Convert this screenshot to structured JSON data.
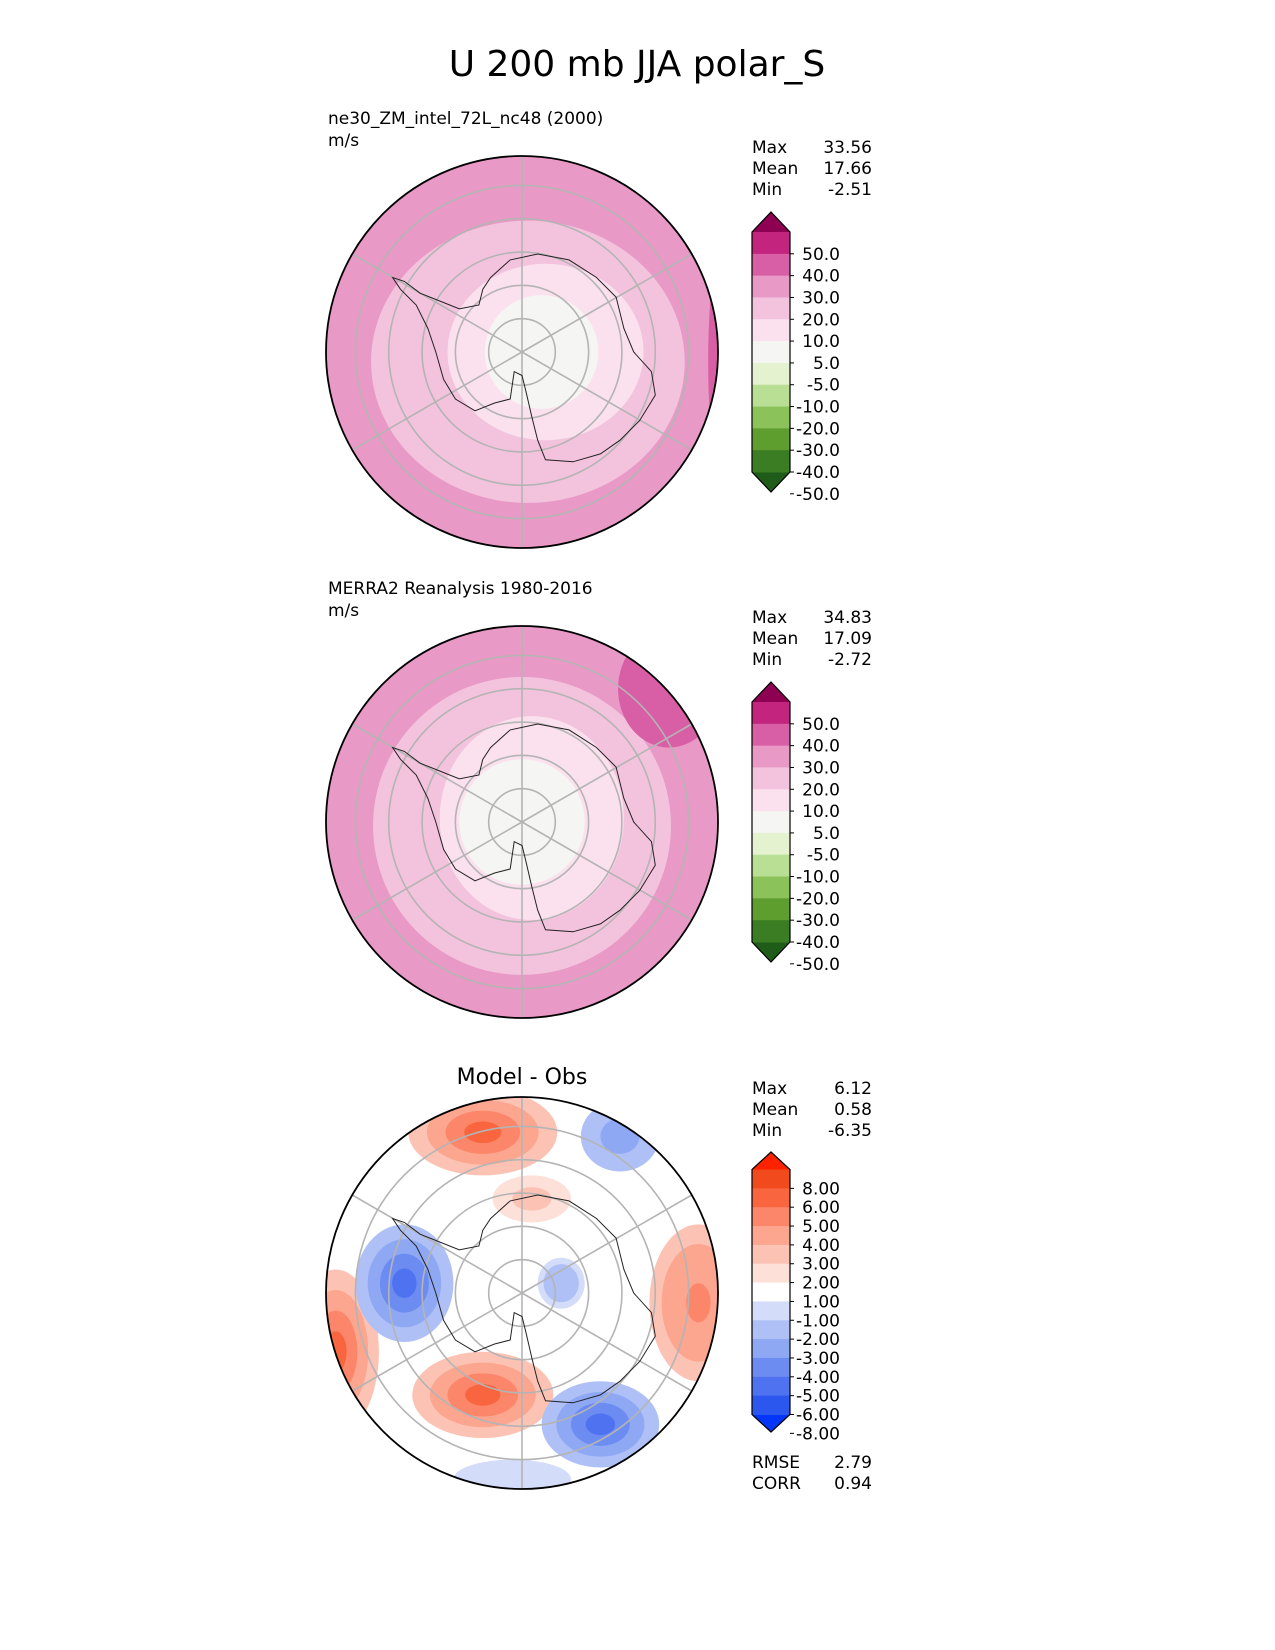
{
  "chart_data": {
    "type": "polar_contour",
    "title": "U 200 mb JJA polar_S",
    "panels": [
      {
        "id": "test",
        "title_lines": [
          "ne30_ZM_intel_72L_nc48 (2000)",
          "m/s"
        ],
        "center_title": "",
        "stats": [
          {
            "label": "Max",
            "value": "33.56"
          },
          {
            "label": "Mean",
            "value": "17.66"
          },
          {
            "label": "Min",
            "value": "-2.51"
          }
        ],
        "footer_stats": [],
        "colorbar": {
          "colors": [
            "#1f5c1a",
            "#3a7d22",
            "#5e9e2e",
            "#8cc25a",
            "#b8df93",
            "#e4f2cf",
            "#f5f5f3",
            "#fbe0ee",
            "#f3c3de",
            "#e899c6",
            "#d85ea5",
            "#c2247e",
            "#8e0152"
          ],
          "ticks": [
            "-50.0",
            "-40.0",
            "-30.0",
            "-20.0",
            "-10.0",
            "-5.0",
            "5.0",
            "10.0",
            "20.0",
            "30.0",
            "40.0",
            "50.0"
          ],
          "ticks_top_to_bottom": [
            "50.0",
            "40.0",
            "30.0",
            "20.0",
            "10.0",
            "5.0",
            "-5.0",
            "-10.0",
            "-20.0",
            "-30.0",
            "-40.0",
            "-50.0"
          ],
          "extend": "both"
        },
        "field_bands": [
          {
            "value": 25,
            "cx": 0,
            "cy": 0,
            "rx": 1.0,
            "ry": 1.0
          },
          {
            "value": 15,
            "cx": 0.03,
            "cy": 0.05,
            "rx": 0.8,
            "ry": 0.72
          },
          {
            "value": 7,
            "cx": 0.12,
            "cy": 0.0,
            "rx": 0.5,
            "ry": 0.45
          },
          {
            "value": 0,
            "cx": 0.1,
            "cy": 0.0,
            "rx": 0.29,
            "ry": 0.29
          }
        ],
        "field_spots": [
          {
            "value": 35,
            "cx": 1.0,
            "cy": 0.05,
            "rx": 0.05,
            "ry": 0.5
          }
        ]
      },
      {
        "id": "ref",
        "title_lines": [
          "MERRA2 Reanalysis 1980-2016",
          "m/s"
        ],
        "center_title": "",
        "stats": [
          {
            "label": "Max",
            "value": "34.83"
          },
          {
            "label": "Mean",
            "value": "17.09"
          },
          {
            "label": "Min",
            "value": "-2.72"
          }
        ],
        "footer_stats": [],
        "colorbar": {
          "colors": [
            "#1f5c1a",
            "#3a7d22",
            "#5e9e2e",
            "#8cc25a",
            "#b8df93",
            "#e4f2cf",
            "#f5f5f3",
            "#fbe0ee",
            "#f3c3de",
            "#e899c6",
            "#d85ea5",
            "#c2247e",
            "#8e0152"
          ],
          "ticks": [
            "-50.0",
            "-40.0",
            "-30.0",
            "-20.0",
            "-10.0",
            "-5.0",
            "5.0",
            "10.0",
            "20.0",
            "30.0",
            "40.0",
            "50.0"
          ],
          "ticks_top_to_bottom": [
            "50.0",
            "40.0",
            "30.0",
            "20.0",
            "10.0",
            "5.0",
            "-5.0",
            "-10.0",
            "-20.0",
            "-30.0",
            "-40.0",
            "-50.0"
          ],
          "extend": "both"
        },
        "field_bands": [
          {
            "value": 25,
            "cx": 0,
            "cy": 0,
            "rx": 1.0,
            "ry": 1.0
          },
          {
            "value": 15,
            "cx": 0.0,
            "cy": 0.02,
            "rx": 0.76,
            "ry": 0.76
          },
          {
            "value": 7,
            "cx": 0.05,
            "cy": -0.02,
            "rx": 0.47,
            "ry": 0.52
          },
          {
            "value": 0,
            "cx": 0.0,
            "cy": 0.0,
            "rx": 0.32,
            "ry": 0.32
          }
        ],
        "field_spots": [
          {
            "value": 35,
            "cx": 0.75,
            "cy": -0.68,
            "rx": 0.26,
            "ry": 0.3
          }
        ]
      },
      {
        "id": "diff",
        "title_lines": [],
        "center_title": "Model - Obs",
        "stats": [
          {
            "label": "Max",
            "value": "6.12"
          },
          {
            "label": "Mean",
            "value": "0.58"
          },
          {
            "label": "Min",
            "value": "-6.35"
          }
        ],
        "footer_stats": [
          {
            "label": "RMSE",
            "value": "2.79"
          },
          {
            "label": "CORR",
            "value": "0.94"
          }
        ],
        "colorbar": {
          "colors": [
            "#0436fa",
            "#2b57ee",
            "#4e72f0",
            "#6d8cf2",
            "#8ea8f4",
            "#afc0f6",
            "#d3dcf9",
            "#ffffff",
            "#fde0d8",
            "#fcc3b4",
            "#fca58f",
            "#fb8669",
            "#f8653f",
            "#f14a1d",
            "#ff2200"
          ],
          "ticks": [
            "-8.00",
            "-6.00",
            "-5.00",
            "-4.00",
            "-3.00",
            "-2.00",
            "-1.00",
            "1.00",
            "2.00",
            "3.00",
            "4.00",
            "5.00",
            "6.00",
            "8.00"
          ],
          "ticks_top_to_bottom": [
            "8.00",
            "6.00",
            "5.00",
            "4.00",
            "3.00",
            "2.00",
            "1.00",
            "-1.00",
            "-2.00",
            "-3.00",
            "-4.00",
            "-5.00",
            "-6.00",
            "-8.00"
          ],
          "extend": "both"
        },
        "field_bands": [],
        "field_spots": [
          {
            "value": 5,
            "cx": -0.2,
            "cy": -0.82,
            "rx": 0.38,
            "ry": 0.22
          },
          {
            "value": 5.5,
            "cx": -0.2,
            "cy": 0.52,
            "rx": 0.36,
            "ry": 0.22
          },
          {
            "value": 5,
            "cx": -0.95,
            "cy": 0.3,
            "rx": 0.22,
            "ry": 0.42
          },
          {
            "value": 4.5,
            "cx": 0.9,
            "cy": 0.05,
            "rx": 0.25,
            "ry": 0.4
          },
          {
            "value": 2.5,
            "cx": 0.05,
            "cy": -0.48,
            "rx": 0.2,
            "ry": 0.12
          },
          {
            "value": -5.5,
            "cx": -0.6,
            "cy": -0.05,
            "rx": 0.25,
            "ry": 0.3
          },
          {
            "value": -5.5,
            "cx": 0.4,
            "cy": 0.67,
            "rx": 0.3,
            "ry": 0.22
          },
          {
            "value": -4,
            "cx": 0.5,
            "cy": -0.8,
            "rx": 0.2,
            "ry": 0.18
          },
          {
            "value": -3,
            "cx": 0.2,
            "cy": -0.05,
            "rx": 0.12,
            "ry": 0.13
          },
          {
            "value": -2,
            "cx": -0.05,
            "cy": 0.95,
            "rx": 0.3,
            "ry": 0.1
          }
        ]
      }
    ]
  }
}
